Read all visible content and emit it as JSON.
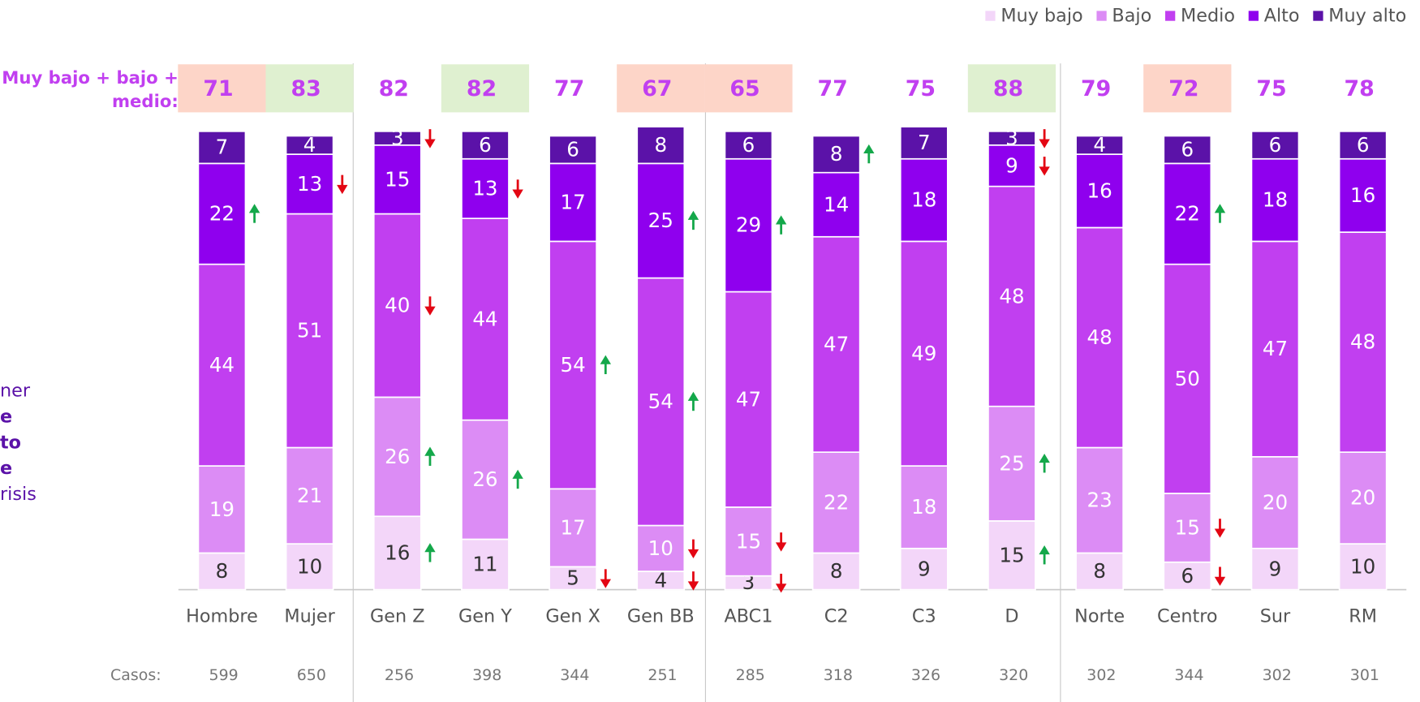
{
  "chart_data": {
    "type": "stacked-bar",
    "categories": [
      "Hombre",
      "Mujer",
      "Gen Z",
      "Gen Y",
      "Gen X",
      "Gen BB",
      "ABC1",
      "C2",
      "C3",
      "D",
      "Norte",
      "Centro",
      "Sur",
      "RM"
    ],
    "series": [
      {
        "name": "Muy bajo",
        "color": "#f3d6f9",
        "label_color": "#333333",
        "values": [
          8,
          10,
          16,
          11,
          5,
          4,
          3,
          8,
          9,
          15,
          8,
          6,
          9,
          10
        ],
        "arrows": [
          null,
          null,
          "up",
          null,
          "down",
          "down",
          "down",
          null,
          null,
          "up",
          null,
          "down",
          null,
          null
        ]
      },
      {
        "name": "Bajo",
        "color": "#dc8cf5",
        "label_color": "#ffffff",
        "values": [
          19,
          21,
          26,
          26,
          17,
          10,
          15,
          22,
          18,
          25,
          23,
          15,
          20,
          20
        ],
        "arrows": [
          null,
          null,
          "up",
          "up",
          null,
          "down",
          "down",
          null,
          null,
          "up",
          null,
          "down",
          null,
          null
        ]
      },
      {
        "name": "Medio",
        "color": "#c13ff0",
        "label_color": "#ffffff",
        "values": [
          44,
          51,
          40,
          44,
          54,
          54,
          47,
          47,
          49,
          48,
          48,
          50,
          47,
          48
        ],
        "arrows": [
          null,
          null,
          "down",
          null,
          "up",
          "up",
          null,
          null,
          null,
          null,
          null,
          null,
          null,
          null
        ]
      },
      {
        "name": "Alto",
        "color": "#8f00ee",
        "label_color": "#ffffff",
        "values": [
          22,
          13,
          15,
          13,
          17,
          25,
          29,
          14,
          18,
          9,
          16,
          22,
          18,
          16
        ],
        "arrows": [
          "up",
          "down",
          null,
          "down",
          null,
          "up",
          "up",
          null,
          null,
          "down",
          null,
          "up",
          null,
          null
        ]
      },
      {
        "name": "Muy alto",
        "color": "#5b12a8",
        "label_color": "#ffffff",
        "values": [
          7,
          4,
          3,
          6,
          6,
          8,
          6,
          8,
          7,
          3,
          4,
          6,
          6,
          6
        ],
        "arrows": [
          null,
          null,
          "down",
          null,
          null,
          null,
          null,
          "up",
          null,
          "down",
          null,
          null,
          null,
          null
        ]
      }
    ],
    "ylim": [
      0,
      100
    ],
    "legend": "top-right",
    "summary_label": [
      "Muy bajo + bajo +",
      "medio:"
    ],
    "summary_values": [
      71,
      83,
      82,
      82,
      77,
      67,
      65,
      77,
      75,
      88,
      79,
      72,
      75,
      78
    ],
    "summary_colors": [
      "#fdd5c8",
      "#dff0d0",
      null,
      "#dff0d0",
      null,
      "#fdd5c8",
      "#fdd5c8",
      null,
      null,
      "#dff0d0",
      null,
      "#fdd5c8",
      null,
      null
    ],
    "cases_label": "Casos:",
    "cases": [
      599,
      650,
      256,
      398,
      344,
      251,
      285,
      318,
      326,
      320,
      302,
      344,
      302,
      301
    ],
    "side_text": [
      {
        "text": "ner",
        "bold": false
      },
      {
        "text": "e",
        "bold": true
      },
      {
        "text": "to",
        "bold": true
      },
      {
        "text": "e",
        "bold": true
      },
      {
        "text": "risis",
        "bold": false
      }
    ]
  }
}
